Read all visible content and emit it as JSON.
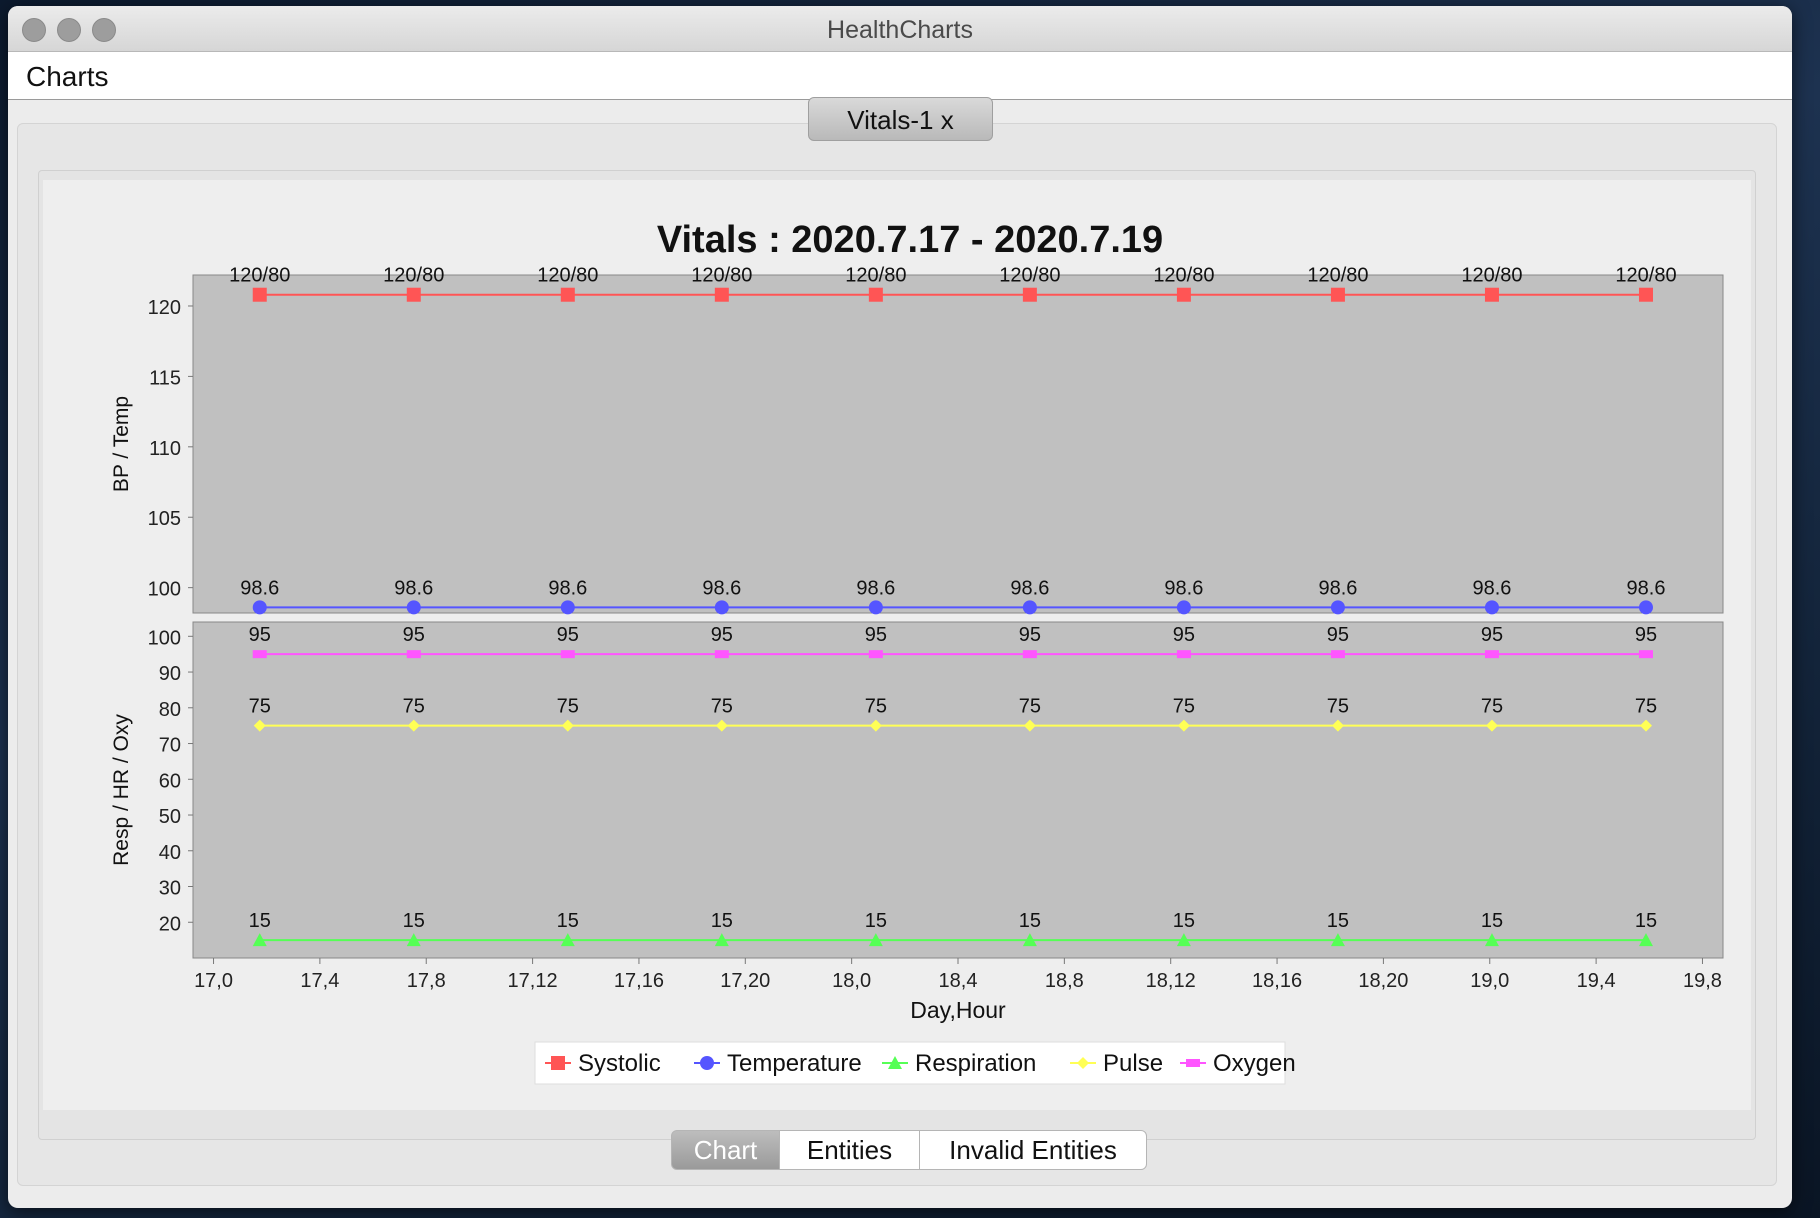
{
  "window": {
    "title": "HealthCharts"
  },
  "menu": {
    "items": [
      "Charts"
    ]
  },
  "doc_tab": {
    "label": "Vitals-1",
    "close": "x"
  },
  "view_tabs": [
    {
      "label": "Chart",
      "selected": true
    },
    {
      "label": "Entities",
      "selected": false
    },
    {
      "label": "Invalid Entities",
      "selected": false
    }
  ],
  "chart_data": {
    "type": "line",
    "title": "Vitals : 2020.7.17 - 2020.7.19",
    "xlabel": "Day,Hour",
    "x_ticks": [
      "17,0",
      "17,4",
      "17,8",
      "17,12",
      "17,16",
      "17,20",
      "18,0",
      "18,4",
      "18,8",
      "18,12",
      "18,16",
      "18,20",
      "19,0",
      "19,4",
      "19,8"
    ],
    "legend": [
      {
        "name": "Systolic",
        "color": "#ff5555",
        "marker": "square"
      },
      {
        "name": "Temperature",
        "color": "#5555ff",
        "marker": "circle"
      },
      {
        "name": "Respiration",
        "color": "#55ff55",
        "marker": "triangle"
      },
      {
        "name": "Pulse",
        "color": "#ffff55",
        "marker": "diamond"
      },
      {
        "name": "Oxygen",
        "color": "#ff55ff",
        "marker": "rect"
      }
    ],
    "panels": [
      {
        "ylabel": "BP / Temp",
        "yticks": [
          100,
          105,
          110,
          115,
          120
        ],
        "ylim": [
          98.2,
          122.2
        ],
        "series": [
          {
            "name": "Systolic",
            "color": "#ff5555",
            "marker": "square",
            "values": [
              120.8,
              120.8,
              120.8,
              120.8,
              120.8,
              120.8,
              120.8,
              120.8,
              120.8,
              120.8
            ],
            "labels": [
              "120/80",
              "120/80",
              "120/80",
              "120/80",
              "120/80",
              "120/80",
              "120/80",
              "120/80",
              "120/80",
              "120/80"
            ]
          },
          {
            "name": "Temperature",
            "color": "#5555ff",
            "marker": "circle",
            "values": [
              98.6,
              98.6,
              98.6,
              98.6,
              98.6,
              98.6,
              98.6,
              98.6,
              98.6,
              98.6
            ],
            "labels": [
              "98.6",
              "98.6",
              "98.6",
              "98.6",
              "98.6",
              "98.6",
              "98.6",
              "98.6",
              "98.6",
              "98.6"
            ]
          }
        ]
      },
      {
        "ylabel": "Resp / HR / Oxy",
        "yticks": [
          20,
          30,
          40,
          50,
          60,
          70,
          80,
          90,
          100
        ],
        "ylim": [
          10,
          104
        ],
        "series": [
          {
            "name": "Oxygen",
            "color": "#ff55ff",
            "marker": "rect",
            "values": [
              95,
              95,
              95,
              95,
              95,
              95,
              95,
              95,
              95,
              95
            ],
            "labels": [
              "95",
              "95",
              "95",
              "95",
              "95",
              "95",
              "95",
              "95",
              "95",
              "95"
            ]
          },
          {
            "name": "Pulse",
            "color": "#ffff55",
            "marker": "diamond",
            "values": [
              75,
              75,
              75,
              75,
              75,
              75,
              75,
              75,
              75,
              75
            ],
            "labels": [
              "75",
              "75",
              "75",
              "75",
              "75",
              "75",
              "75",
              "75",
              "75",
              "75"
            ]
          },
          {
            "name": "Respiration",
            "color": "#55ff55",
            "marker": "triangle",
            "values": [
              15,
              15,
              15,
              15,
              15,
              15,
              15,
              15,
              15,
              15
            ],
            "labels": [
              "15",
              "15",
              "15",
              "15",
              "15",
              "15",
              "15",
              "15",
              "15",
              "15"
            ]
          }
        ]
      }
    ],
    "x_points": [
      0.8,
      6.8,
      12.8,
      18.8,
      24.8,
      30.8,
      36.8,
      42.8,
      48.8,
      54.8
    ],
    "xlim": [
      -1.8,
      57.8
    ],
    "grid": false
  }
}
